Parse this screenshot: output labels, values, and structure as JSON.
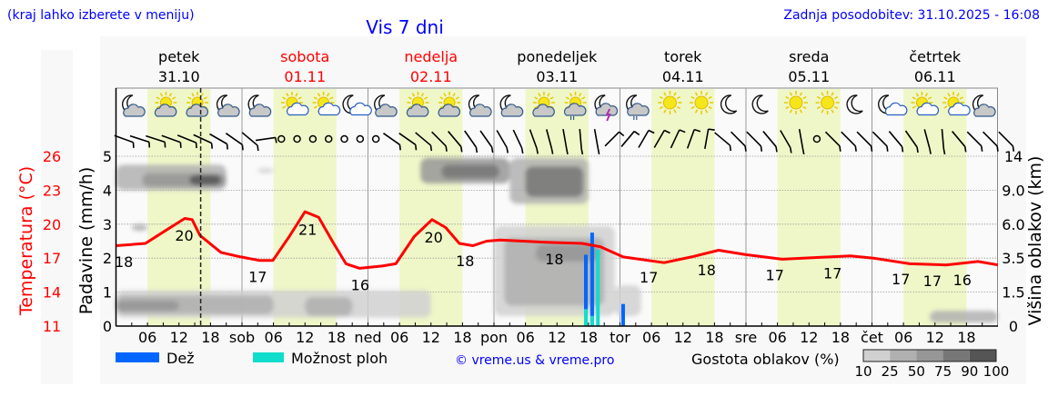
{
  "header": {
    "region_hint": "(kraj lahko izberete v meniju)",
    "title": "Vis 7 dni",
    "updated": "Zadnja posodobitev: 31.10.2025 - 16:08"
  },
  "colors": {
    "accent_blue": "#0000ff",
    "temp_red": "#ff0000",
    "rain": "#0066ff",
    "showers": "#11ddcc",
    "day_band": "#eff7c8"
  },
  "chart_data": {
    "type": "line",
    "title": "Vis 7 dni",
    "days": [
      {
        "name": "petek",
        "date": "31.10",
        "abbr": "pet",
        "weekend": false
      },
      {
        "name": "sobota",
        "date": "01.11",
        "abbr": "sob",
        "weekend": true
      },
      {
        "name": "nedelja",
        "date": "02.11",
        "abbr": "ned",
        "weekend": true
      },
      {
        "name": "ponedeljek",
        "date": "03.11",
        "abbr": "pon",
        "weekend": false
      },
      {
        "name": "torek",
        "date": "04.11",
        "abbr": "tor",
        "weekend": false
      },
      {
        "name": "sreda",
        "date": "05.11",
        "abbr": "sre",
        "weekend": false
      },
      {
        "name": "četrtek",
        "date": "06.11",
        "abbr": "čet",
        "weekend": false
      }
    ],
    "hour_ticks": [
      "06",
      "12",
      "18"
    ],
    "now_hour": 16.13,
    "axes": {
      "temperature": {
        "label": "Temperatura (°C)",
        "range": [
          11,
          26
        ],
        "ticks": [
          "26",
          "23",
          "20",
          "17",
          "14",
          "11"
        ]
      },
      "precipitation": {
        "label": "Padavine (mm/h)",
        "range": [
          0,
          5
        ],
        "ticks": [
          "0",
          "1",
          "2",
          "3",
          "4",
          "5"
        ]
      },
      "cloud_height": {
        "label": "Višina oblakov (km)",
        "ticks": [
          "0",
          "1.5",
          "3.5",
          "6.0",
          "9.0",
          "14"
        ]
      }
    },
    "temperature_series": {
      "hours": [
        0,
        5.6,
        10,
        13.1,
        14.5,
        16,
        20,
        23.8,
        27.3,
        29.9,
        33,
        36,
        38.6,
        41.2,
        43.8,
        46.4,
        50.7,
        53.3,
        56.8,
        60.2,
        62.8,
        65.4,
        68,
        70.6,
        73.2,
        81.9,
        88.8,
        92.3,
        96.6,
        104.4,
        109.6,
        114.8,
        120,
        126.9,
        139.9,
        144.3,
        151.2,
        158.1,
        164.2,
        168
      ],
      "values": [
        18.1,
        18.3,
        19.6,
        20.5,
        20.4,
        19.0,
        17.5,
        17.1,
        16.8,
        16.8,
        18.9,
        21.1,
        20.6,
        18.5,
        16.5,
        16.1,
        16.3,
        16.5,
        18.9,
        20.4,
        19.7,
        18.3,
        18.1,
        18.5,
        18.6,
        18.4,
        18.3,
        18.0,
        17.1,
        16.6,
        17.1,
        17.7,
        17.3,
        16.9,
        17.2,
        17.0,
        16.5,
        16.4,
        16.7,
        16.4
      ]
    },
    "temperature_labels": [
      {
        "hour": 1.5,
        "text": "18",
        "pos": "below"
      },
      {
        "hour": 13,
        "text": "20",
        "pos": "below"
      },
      {
        "hour": 27,
        "text": "17",
        "pos": "below"
      },
      {
        "hour": 36.5,
        "text": "21",
        "pos": "below"
      },
      {
        "hour": 46.5,
        "text": "16",
        "pos": "below"
      },
      {
        "hour": 60.5,
        "text": "20",
        "pos": "below"
      },
      {
        "hour": 66.5,
        "text": "18",
        "pos": "below"
      },
      {
        "hour": 83.5,
        "text": "18",
        "pos": "below"
      },
      {
        "hour": 101.5,
        "text": "17",
        "pos": "below"
      },
      {
        "hour": 112.5,
        "text": "18",
        "pos": "below"
      },
      {
        "hour": 125.5,
        "text": "17",
        "pos": "below"
      },
      {
        "hour": 136.5,
        "text": "17",
        "pos": "below"
      },
      {
        "hour": 149.5,
        "text": "17",
        "pos": "below"
      },
      {
        "hour": 155.5,
        "text": "17",
        "pos": "below"
      },
      {
        "hour": 161.2,
        "text": "16",
        "pos": "below"
      }
    ],
    "rain_bars": [
      {
        "hour": 89.5,
        "rain": 2.1,
        "showers": 0.5
      },
      {
        "hour": 90.7,
        "rain": 2.75,
        "showers": 0.3
      },
      {
        "hour": 91.8,
        "rain": 0,
        "showers": 2.25
      },
      {
        "hour": 96.6,
        "rain": 0.65,
        "showers": 0
      }
    ],
    "cloud_layers": [
      {
        "from": 0,
        "to": 21,
        "low": 4.0,
        "high": 4.75,
        "density": 25
      },
      {
        "from": 5,
        "to": 21,
        "low": 4.1,
        "high": 4.5,
        "density": 50
      },
      {
        "from": 14,
        "to": 20,
        "low": 4.15,
        "high": 4.45,
        "density": 90
      },
      {
        "from": 27,
        "to": 30,
        "low": 4.5,
        "high": 4.65,
        "density": 10
      },
      {
        "from": 0,
        "to": 60,
        "low": 0.25,
        "high": 1.05,
        "density": 10
      },
      {
        "from": 0,
        "to": 30,
        "low": 0.35,
        "high": 0.9,
        "density": 25
      },
      {
        "from": 0,
        "to": 12,
        "low": 0.45,
        "high": 0.75,
        "density": 50
      },
      {
        "from": 36,
        "to": 45,
        "low": 0.3,
        "high": 0.85,
        "density": 25
      },
      {
        "from": 58,
        "to": 75,
        "low": 4.2,
        "high": 4.95,
        "density": 50
      },
      {
        "from": 62,
        "to": 73,
        "low": 4.35,
        "high": 4.75,
        "density": 75
      },
      {
        "from": 75,
        "to": 90,
        "low": 3.6,
        "high": 4.95,
        "density": 25
      },
      {
        "from": 78,
        "to": 89,
        "low": 3.8,
        "high": 4.7,
        "density": 75
      },
      {
        "from": 72,
        "to": 95,
        "low": 0.3,
        "high": 2.95,
        "density": 10
      },
      {
        "from": 74,
        "to": 93,
        "low": 0.6,
        "high": 2.6,
        "density": 25
      },
      {
        "from": 80,
        "to": 92,
        "low": 1.9,
        "high": 2.4,
        "density": 50
      },
      {
        "from": 95,
        "to": 100,
        "low": 0.3,
        "high": 1.2,
        "density": 10
      },
      {
        "from": 155,
        "to": 168,
        "low": 0.1,
        "high": 0.45,
        "density": 25
      },
      {
        "from": 3,
        "to": 6,
        "low": 2.8,
        "high": 3.0,
        "density": 25
      }
    ],
    "weather_icons": [
      "moon-cloud",
      "sun-cloud",
      "sun-cloud",
      "moon-cloud",
      "moon-cloud",
      "sun-small-cloud",
      "sun-small-cloud",
      "moon-small-cloud",
      "moon-cloud",
      "sun-cloud",
      "sun-cloud",
      "moon-cloud",
      "moon-cloud",
      "sun-cloud",
      "sun-rain",
      "moon-thunder",
      "moon-rain",
      "sun",
      "sun",
      "moon",
      "moon",
      "sun",
      "sun",
      "moon",
      "moon-small-cloud",
      "sun-small-cloud",
      "sun-small-cloud",
      "moon-cloud"
    ],
    "wind_directions_deg": [
      20,
      18,
      18,
      20,
      22,
      25,
      30,
      35,
      40,
      -8,
      "calm",
      "calm",
      "calm",
      "calm",
      "calm",
      "calm",
      "calm",
      35,
      35,
      40,
      45,
      50,
      55,
      55,
      60,
      65,
      70,
      75,
      80,
      85,
      80,
      -45,
      -50,
      -60,
      -60,
      -65,
      -70,
      -80,
      40,
      45,
      45,
      50,
      60,
      80,
      "calm",
      45,
      45,
      45,
      45,
      50,
      55,
      75,
      85,
      50,
      45,
      45,
      45
    ],
    "legend": {
      "rain": "Dež",
      "showers": "Možnost ploh",
      "credit": "© vreme.us & vreme.pro",
      "cloud_density": "Gostota oblakov (%)",
      "density_steps": [
        "10",
        "25",
        "50",
        "75",
        "90",
        "100"
      ],
      "density_colors": [
        "#d0d0d0",
        "#b0b0b0",
        "#979797",
        "#777777",
        "#555555"
      ]
    }
  }
}
